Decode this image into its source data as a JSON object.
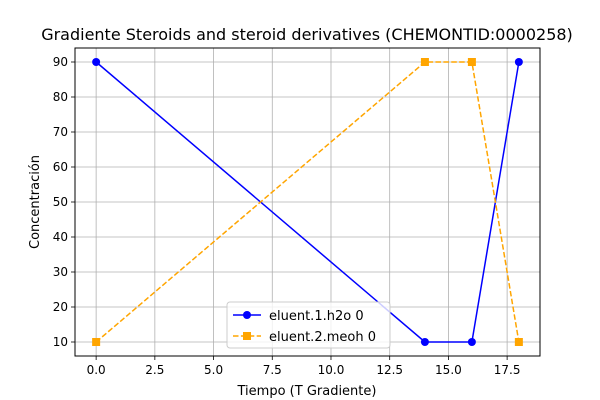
{
  "chart_data": {
    "type": "line",
    "title": "Gradiente Steroids and steroid derivatives (CHEMONTID:0000258)",
    "xlabel": "Tiempo (T Gradiente)",
    "ylabel": "Concentración",
    "xlim": [
      -0.9,
      18.9
    ],
    "ylim": [
      6,
      94
    ],
    "xticks": [
      0.0,
      2.5,
      5.0,
      7.5,
      10.0,
      12.5,
      15.0,
      17.5
    ],
    "xtick_labels": [
      "0.0",
      "2.5",
      "5.0",
      "7.5",
      "10.0",
      "12.5",
      "15.0",
      "17.5"
    ],
    "yticks": [
      10,
      20,
      30,
      40,
      50,
      60,
      70,
      80,
      90
    ],
    "ytick_labels": [
      "10",
      "20",
      "30",
      "40",
      "50",
      "60",
      "70",
      "80",
      "90"
    ],
    "grid": true,
    "legend_position": "lower center",
    "series": [
      {
        "name": "eluent.1.h2o 0",
        "x": [
          0,
          14,
          16,
          18
        ],
        "y": [
          90,
          10,
          10,
          90
        ],
        "color": "#0000ff",
        "line_style": "solid",
        "marker": "circle"
      },
      {
        "name": "eluent.2.meoh 0",
        "x": [
          0,
          14,
          16,
          18
        ],
        "y": [
          10,
          90,
          90,
          10
        ],
        "color": "#ffa500",
        "line_style": "dashed",
        "marker": "square"
      }
    ]
  }
}
